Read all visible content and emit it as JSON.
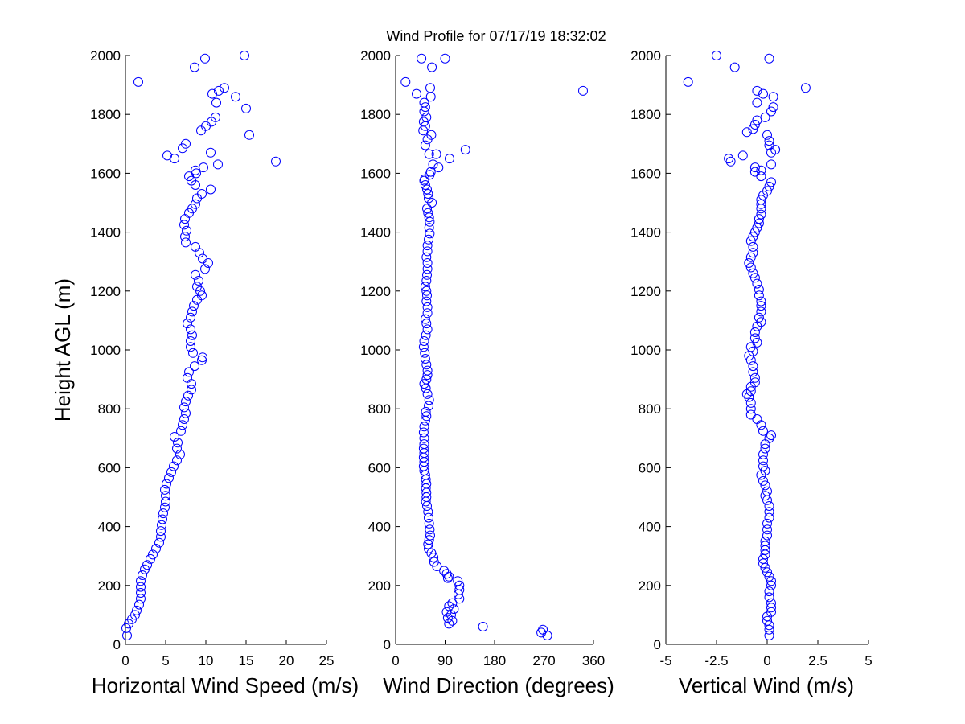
{
  "title": "Wind Profile for  07/17/19 18:32:02",
  "colors": {
    "marker": "#0000ff",
    "axis": "#000000",
    "background": "#ffffff"
  },
  "chart_data": [
    {
      "type": "scatter",
      "xlabel": "Horizontal Wind Speed (m/s)",
      "ylabel": "Height AGL (m)",
      "xlim": [
        0,
        25
      ],
      "ylim": [
        0,
        2000
      ],
      "xticks": [
        "0",
        "5",
        "10",
        "15",
        "20",
        "25"
      ],
      "yticks": [
        "0",
        "200",
        "400",
        "600",
        "800",
        "1000",
        "1200",
        "1400",
        "1600",
        "1800",
        "2000"
      ],
      "grid": false,
      "points": [
        [
          0.2,
          30
        ],
        [
          0.1,
          55
        ],
        [
          0.4,
          70
        ],
        [
          0.8,
          85
        ],
        [
          1.2,
          100
        ],
        [
          1.4,
          115
        ],
        [
          1.7,
          135
        ],
        [
          1.9,
          155
        ],
        [
          1.9,
          175
        ],
        [
          1.9,
          195
        ],
        [
          1.9,
          215
        ],
        [
          2.1,
          235
        ],
        [
          2.4,
          255
        ],
        [
          2.7,
          270
        ],
        [
          3.1,
          290
        ],
        [
          3.4,
          305
        ],
        [
          3.8,
          325
        ],
        [
          4.2,
          345
        ],
        [
          4.4,
          365
        ],
        [
          4.4,
          385
        ],
        [
          4.5,
          405
        ],
        [
          4.6,
          425
        ],
        [
          4.7,
          445
        ],
        [
          4.9,
          465
        ],
        [
          5.0,
          485
        ],
        [
          5.0,
          505
        ],
        [
          4.9,
          525
        ],
        [
          5.1,
          545
        ],
        [
          5.4,
          565
        ],
        [
          5.7,
          585
        ],
        [
          6.0,
          605
        ],
        [
          6.4,
          625
        ],
        [
          6.8,
          645
        ],
        [
          6.4,
          665
        ],
        [
          6.5,
          685
        ],
        [
          6.1,
          705
        ],
        [
          6.9,
          725
        ],
        [
          7.1,
          745
        ],
        [
          7.3,
          765
        ],
        [
          7.5,
          785
        ],
        [
          7.3,
          805
        ],
        [
          7.5,
          825
        ],
        [
          7.8,
          845
        ],
        [
          8.2,
          865
        ],
        [
          8.2,
          885
        ],
        [
          7.7,
          905
        ],
        [
          7.9,
          925
        ],
        [
          8.6,
          945
        ],
        [
          9.5,
          965
        ],
        [
          9.6,
          975
        ],
        [
          8.4,
          990
        ],
        [
          8.1,
          1010
        ],
        [
          8.1,
          1030
        ],
        [
          8.3,
          1050
        ],
        [
          8.1,
          1070
        ],
        [
          7.7,
          1090
        ],
        [
          8.1,
          1110
        ],
        [
          8.3,
          1130
        ],
        [
          8.5,
          1150
        ],
        [
          8.9,
          1170
        ],
        [
          9.5,
          1185
        ],
        [
          9.3,
          1200
        ],
        [
          8.9,
          1215
        ],
        [
          9.1,
          1235
        ],
        [
          8.7,
          1255
        ],
        [
          9.9,
          1275
        ],
        [
          10.3,
          1295
        ],
        [
          9.6,
          1310
        ],
        [
          9.2,
          1330
        ],
        [
          8.7,
          1350
        ],
        [
          7.5,
          1365
        ],
        [
          7.4,
          1385
        ],
        [
          7.6,
          1405
        ],
        [
          7.3,
          1425
        ],
        [
          7.4,
          1445
        ],
        [
          7.9,
          1465
        ],
        [
          8.3,
          1480
        ],
        [
          8.7,
          1495
        ],
        [
          8.9,
          1515
        ],
        [
          9.5,
          1530
        ],
        [
          10.6,
          1545
        ],
        [
          8.7,
          1560
        ],
        [
          8.2,
          1575
        ],
        [
          7.9,
          1590
        ],
        [
          8.8,
          1600
        ],
        [
          8.7,
          1610
        ],
        [
          9.7,
          1620
        ],
        [
          11.5,
          1630
        ],
        [
          18.7,
          1640
        ],
        [
          6.1,
          1650
        ],
        [
          5.2,
          1660
        ],
        [
          10.6,
          1670
        ],
        [
          7.1,
          1685
        ],
        [
          7.5,
          1700
        ],
        [
          15.4,
          1730
        ],
        [
          9.4,
          1745
        ],
        [
          10.0,
          1760
        ],
        [
          10.7,
          1775
        ],
        [
          11.2,
          1790
        ],
        [
          15.0,
          1820
        ],
        [
          11.3,
          1840
        ],
        [
          13.7,
          1860
        ],
        [
          10.8,
          1870
        ],
        [
          11.6,
          1880
        ],
        [
          12.3,
          1890
        ],
        [
          1.6,
          1910
        ],
        [
          8.6,
          1960
        ],
        [
          9.9,
          1990
        ],
        [
          14.8,
          2000
        ]
      ]
    },
    {
      "type": "scatter",
      "xlabel": "Wind Direction (degrees)",
      "xlim": [
        0,
        360
      ],
      "ylim": [
        0,
        2000
      ],
      "xticks": [
        "0",
        "90",
        "180",
        "270",
        "360"
      ],
      "yticks": [
        "0",
        "200",
        "400",
        "600",
        "800",
        "1000",
        "1200",
        "1400",
        "1600",
        "1800",
        "2000"
      ],
      "grid": false,
      "points": [
        [
          276,
          30
        ],
        [
          265,
          40
        ],
        [
          268,
          50
        ],
        [
          159,
          60
        ],
        [
          97,
          70
        ],
        [
          103,
          80
        ],
        [
          95,
          90
        ],
        [
          101,
          100
        ],
        [
          93,
          110
        ],
        [
          106,
          120
        ],
        [
          97,
          130
        ],
        [
          103,
          140
        ],
        [
          116,
          155
        ],
        [
          114,
          170
        ],
        [
          116,
          185
        ],
        [
          116,
          200
        ],
        [
          113,
          215
        ],
        [
          97,
          230
        ],
        [
          93,
          240
        ],
        [
          95,
          225
        ],
        [
          88,
          250
        ],
        [
          75,
          265
        ],
        [
          70,
          280
        ],
        [
          69,
          295
        ],
        [
          65,
          310
        ],
        [
          60,
          325
        ],
        [
          59,
          340
        ],
        [
          61,
          355
        ],
        [
          63,
          370
        ],
        [
          62,
          390
        ],
        [
          61,
          410
        ],
        [
          60,
          430
        ],
        [
          59,
          450
        ],
        [
          57,
          470
        ],
        [
          55,
          485
        ],
        [
          56,
          500
        ],
        [
          56,
          515
        ],
        [
          55,
          530
        ],
        [
          56,
          545
        ],
        [
          55,
          560
        ],
        [
          54,
          575
        ],
        [
          52,
          590
        ],
        [
          51,
          605
        ],
        [
          52,
          620
        ],
        [
          51,
          635
        ],
        [
          52,
          650
        ],
        [
          51,
          665
        ],
        [
          52,
          680
        ],
        [
          52,
          700
        ],
        [
          51,
          720
        ],
        [
          52,
          740
        ],
        [
          54,
          760
        ],
        [
          56,
          775
        ],
        [
          55,
          790
        ],
        [
          60,
          810
        ],
        [
          61,
          830
        ],
        [
          58,
          850
        ],
        [
          55,
          870
        ],
        [
          52,
          885
        ],
        [
          56,
          900
        ],
        [
          58,
          915
        ],
        [
          58,
          930
        ],
        [
          56,
          950
        ],
        [
          54,
          970
        ],
        [
          53,
          990
        ],
        [
          51,
          1010
        ],
        [
          52,
          1030
        ],
        [
          55,
          1050
        ],
        [
          58,
          1070
        ],
        [
          56,
          1090
        ],
        [
          54,
          1105
        ],
        [
          58,
          1125
        ],
        [
          58,
          1145
        ],
        [
          56,
          1165
        ],
        [
          57,
          1185
        ],
        [
          56,
          1200
        ],
        [
          54,
          1215
        ],
        [
          56,
          1235
        ],
        [
          57,
          1255
        ],
        [
          58,
          1275
        ],
        [
          58,
          1295
        ],
        [
          56,
          1315
        ],
        [
          58,
          1335
        ],
        [
          58,
          1355
        ],
        [
          60,
          1375
        ],
        [
          62,
          1395
        ],
        [
          61,
          1415
        ],
        [
          62,
          1435
        ],
        [
          61,
          1450
        ],
        [
          59,
          1465
        ],
        [
          57,
          1480
        ],
        [
          66,
          1500
        ],
        [
          60,
          1515
        ],
        [
          59,
          1530
        ],
        [
          57,
          1545
        ],
        [
          54,
          1560
        ],
        [
          52,
          1575
        ],
        [
          53,
          1580
        ],
        [
          62,
          1595
        ],
        [
          64,
          1605
        ],
        [
          78,
          1620
        ],
        [
          68,
          1630
        ],
        [
          98,
          1650
        ],
        [
          61,
          1665
        ],
        [
          74,
          1665
        ],
        [
          127,
          1680
        ],
        [
          54,
          1695
        ],
        [
          58,
          1715
        ],
        [
          65,
          1730
        ],
        [
          50,
          1745
        ],
        [
          54,
          1760
        ],
        [
          51,
          1775
        ],
        [
          56,
          1790
        ],
        [
          52,
          1810
        ],
        [
          54,
          1825
        ],
        [
          52,
          1840
        ],
        [
          64,
          1860
        ],
        [
          38,
          1870
        ],
        [
          18,
          1910
        ],
        [
          63,
          1890
        ],
        [
          341,
          1880
        ],
        [
          66,
          1960
        ],
        [
          47,
          1990
        ],
        [
          90,
          1990
        ]
      ]
    },
    {
      "type": "scatter",
      "xlabel": "Vertical Wind (m/s)",
      "xlim": [
        -5,
        5
      ],
      "ylim": [
        0,
        2000
      ],
      "xticks": [
        "-5",
        "-2.5",
        "0",
        "2.5",
        "5"
      ],
      "yticks": [
        "0",
        "200",
        "400",
        "600",
        "800",
        "1000",
        "1200",
        "1400",
        "1600",
        "1800",
        "2000"
      ],
      "grid": false,
      "points": [
        [
          0.1,
          30
        ],
        [
          0.1,
          50
        ],
        [
          0.1,
          65
        ],
        [
          0.0,
          80
        ],
        [
          0.0,
          95
        ],
        [
          0.2,
          110
        ],
        [
          0.2,
          125
        ],
        [
          0.2,
          140
        ],
        [
          0.1,
          160
        ],
        [
          0.1,
          180
        ],
        [
          0.2,
          200
        ],
        [
          0.2,
          215
        ],
        [
          0.1,
          230
        ],
        [
          0.0,
          245
        ],
        [
          -0.1,
          260
        ],
        [
          -0.2,
          275
        ],
        [
          -0.2,
          290
        ],
        [
          -0.1,
          305
        ],
        [
          -0.1,
          320
        ],
        [
          -0.1,
          335
        ],
        [
          -0.1,
          350
        ],
        [
          -0.0,
          370
        ],
        [
          0.0,
          390
        ],
        [
          0.0,
          410
        ],
        [
          0.1,
          430
        ],
        [
          0.1,
          450
        ],
        [
          0.1,
          470
        ],
        [
          0.0,
          490
        ],
        [
          -0.1,
          505
        ],
        [
          -0.0,
          520
        ],
        [
          -0.1,
          540
        ],
        [
          -0.2,
          555
        ],
        [
          -0.3,
          575
        ],
        [
          -0.1,
          590
        ],
        [
          -0.2,
          605
        ],
        [
          -0.2,
          625
        ],
        [
          -0.2,
          645
        ],
        [
          -0.1,
          665
        ],
        [
          -0.1,
          680
        ],
        [
          0.1,
          700
        ],
        [
          0.2,
          710
        ],
        [
          -0.2,
          725
        ],
        [
          -0.3,
          745
        ],
        [
          -0.5,
          765
        ],
        [
          -0.8,
          780
        ],
        [
          -0.8,
          800
        ],
        [
          -0.8,
          820
        ],
        [
          -0.9,
          840
        ],
        [
          -1.0,
          850
        ],
        [
          -0.8,
          860
        ],
        [
          -0.8,
          875
        ],
        [
          -0.6,
          890
        ],
        [
          -0.6,
          905
        ],
        [
          -0.7,
          925
        ],
        [
          -0.7,
          945
        ],
        [
          -0.8,
          965
        ],
        [
          -0.9,
          980
        ],
        [
          -0.7,
          995
        ],
        [
          -0.8,
          1010
        ],
        [
          -0.5,
          1025
        ],
        [
          -0.6,
          1040
        ],
        [
          -0.6,
          1060
        ],
        [
          -0.5,
          1080
        ],
        [
          -0.3,
          1095
        ],
        [
          -0.4,
          1110
        ],
        [
          -0.3,
          1130
        ],
        [
          -0.3,
          1150
        ],
        [
          -0.3,
          1165
        ],
        [
          -0.4,
          1185
        ],
        [
          -0.4,
          1205
        ],
        [
          -0.5,
          1225
        ],
        [
          -0.6,
          1245
        ],
        [
          -0.7,
          1260
        ],
        [
          -0.8,
          1280
        ],
        [
          -0.9,
          1295
        ],
        [
          -0.8,
          1315
        ],
        [
          -0.7,
          1330
        ],
        [
          -0.7,
          1350
        ],
        [
          -0.8,
          1370
        ],
        [
          -0.7,
          1385
        ],
        [
          -0.6,
          1400
        ],
        [
          -0.5,
          1415
        ],
        [
          -0.4,
          1430
        ],
        [
          -0.4,
          1445
        ],
        [
          -0.3,
          1460
        ],
        [
          -0.3,
          1480
        ],
        [
          -0.3,
          1495
        ],
        [
          -0.3,
          1510
        ],
        [
          -0.2,
          1525
        ],
        [
          0.0,
          1540
        ],
        [
          0.1,
          1555
        ],
        [
          0.2,
          1570
        ],
        [
          -0.3,
          1590
        ],
        [
          -0.6,
          1605
        ],
        [
          -0.3,
          1610
        ],
        [
          -0.6,
          1620
        ],
        [
          0.2,
          1630
        ],
        [
          -1.8,
          1640
        ],
        [
          -1.9,
          1650
        ],
        [
          -1.2,
          1660
        ],
        [
          0.2,
          1670
        ],
        [
          0.4,
          1680
        ],
        [
          0.1,
          1695
        ],
        [
          0.1,
          1710
        ],
        [
          0.0,
          1730
        ],
        [
          -1.0,
          1740
        ],
        [
          -0.7,
          1750
        ],
        [
          -0.6,
          1765
        ],
        [
          -0.5,
          1780
        ],
        [
          -0.1,
          1790
        ],
        [
          0.2,
          1810
        ],
        [
          0.3,
          1825
        ],
        [
          -0.5,
          1840
        ],
        [
          0.3,
          1860
        ],
        [
          -0.2,
          1870
        ],
        [
          -0.5,
          1880
        ],
        [
          1.9,
          1890
        ],
        [
          -3.9,
          1910
        ],
        [
          -1.6,
          1960
        ],
        [
          0.1,
          1990
        ],
        [
          -2.5,
          2000
        ]
      ]
    }
  ]
}
